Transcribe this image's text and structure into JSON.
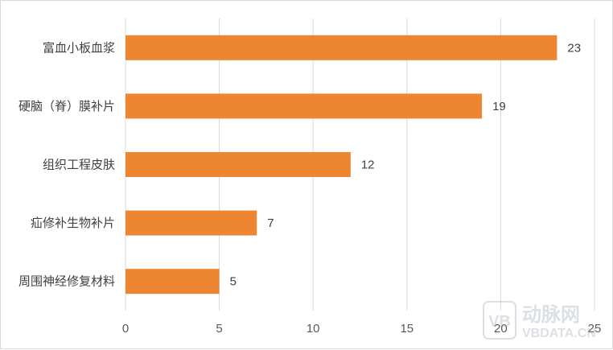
{
  "chart_data": {
    "type": "bar",
    "orientation": "horizontal",
    "categories": [
      "富血小板血浆",
      "硬脑（脊）膜补片",
      "组织工程皮肤",
      "疝修补生物补片",
      "周围神经修复材料"
    ],
    "values": [
      23,
      19,
      12,
      7,
      5
    ],
    "xlim": [
      0,
      25
    ],
    "xticks": [
      0,
      5,
      10,
      15,
      20,
      25
    ],
    "grid": true,
    "bar_color": "#ED8531",
    "data_labels": true
  },
  "watermark": {
    "logo_letters": "VB",
    "name": "动脉网",
    "url": "VBDATA.CN"
  },
  "colors": {
    "bar": "#ED8531",
    "grid": "#d9d9d9",
    "text": "#404040"
  }
}
